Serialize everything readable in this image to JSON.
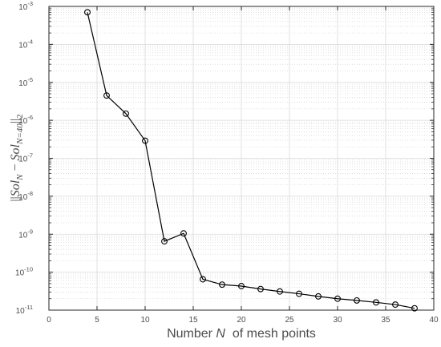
{
  "chart_data": {
    "type": "line",
    "title": "",
    "xlabel": "Number N  of mesh points",
    "xlabel_parts": {
      "prefix": "Number ",
      "var": "N",
      "suffix": "  of mesh points"
    },
    "ylabel": "||Sol_N - Sol_{N=40}||_2",
    "ylabel_parts": {
      "bars_open": "||",
      "sol1": "Sol",
      "sub1": "N",
      "minus": " − ",
      "sol2": "Sol",
      "sub2": "N=40",
      "bars_close": "||",
      "sub3": "2"
    },
    "xlim": [
      0,
      40
    ],
    "ylim": [
      1e-11,
      0.001
    ],
    "yscale": "log",
    "grid": true,
    "x_ticks": [
      "0",
      "5",
      "10",
      "15",
      "20",
      "25",
      "30",
      "35",
      "40"
    ],
    "y_ticks": [
      {
        "base": "10",
        "exp": "-3"
      },
      {
        "base": "10",
        "exp": "-4"
      },
      {
        "base": "10",
        "exp": "-5"
      },
      {
        "base": "10",
        "exp": "-6"
      },
      {
        "base": "10",
        "exp": "-7"
      },
      {
        "base": "10",
        "exp": "-8"
      },
      {
        "base": "10",
        "exp": "-9"
      },
      {
        "base": "10",
        "exp": "-10"
      },
      {
        "base": "10",
        "exp": "-11"
      }
    ],
    "series": [
      {
        "marker": "circle",
        "color": "#000000",
        "x": [
          4,
          6,
          8,
          10,
          12,
          14,
          16,
          18,
          20,
          22,
          24,
          26,
          28,
          30,
          32,
          34,
          36,
          38
        ],
        "y": [
          0.0007,
          4.5e-06,
          1.5e-06,
          2.9e-07,
          6.5e-10,
          1.05e-09,
          6.5e-11,
          4.7e-11,
          4.3e-11,
          3.6e-11,
          3.1e-11,
          2.7e-11,
          2.3e-11,
          2e-11,
          1.8e-11,
          1.6e-11,
          1.4e-11,
          1.12e-11
        ]
      }
    ]
  }
}
